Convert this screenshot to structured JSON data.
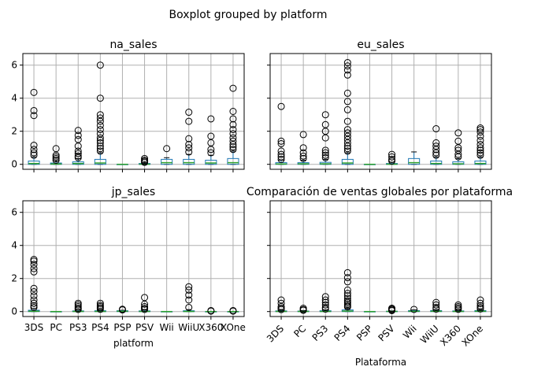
{
  "chart_data": {
    "type": "boxplot",
    "suptitle": "Boxplot grouped by platform",
    "categories": [
      "3DS",
      "PC",
      "PS3",
      "PS4",
      "PSP",
      "PSV",
      "Wii",
      "WiiU",
      "X360",
      "XOne"
    ],
    "ylim": [
      -0.3,
      6.7
    ],
    "yticks": [
      0,
      2,
      4,
      6
    ],
    "grid": true,
    "panels": [
      {
        "title": "na_sales",
        "xlabel": "",
        "show_xticklabels": false,
        "show_yticklabels": true,
        "boxes": [
          {
            "q1": 0.0,
            "med": 0.05,
            "q3": 0.2,
            "wlo": 0.0,
            "whi": 0.45,
            "fliers": [
              0.55,
              0.7,
              0.9,
              1.15,
              2.95,
              3.25,
              4.35
            ]
          },
          {
            "q1": 0.0,
            "med": 0.02,
            "q3": 0.08,
            "wlo": 0.0,
            "whi": 0.2,
            "fliers": [
              0.25,
              0.35,
              0.45,
              0.55,
              0.95
            ]
          },
          {
            "q1": 0.0,
            "med": 0.05,
            "q3": 0.15,
            "wlo": 0.0,
            "whi": 0.35,
            "fliers": [
              0.4,
              0.5,
              0.65,
              0.8,
              1.1,
              1.5,
              1.75,
              2.05
            ]
          },
          {
            "q1": 0.0,
            "med": 0.08,
            "q3": 0.3,
            "wlo": 0.0,
            "whi": 0.7,
            "fliers": [
              0.8,
              0.95,
              1.1,
              1.3,
              1.45,
              1.6,
              1.85,
              2.1,
              2.35,
              2.6,
              2.8,
              3.0,
              4.0,
              6.0
            ]
          },
          {
            "q1": 0.0,
            "med": 0.0,
            "q3": 0.0,
            "wlo": 0.0,
            "whi": 0.0,
            "fliers": []
          },
          {
            "q1": 0.0,
            "med": 0.01,
            "q3": 0.05,
            "wlo": 0.0,
            "whi": 0.1,
            "fliers": [
              0.12,
              0.18,
              0.25,
              0.35
            ]
          },
          {
            "q1": 0.0,
            "med": 0.1,
            "q3": 0.3,
            "wlo": 0.0,
            "whi": 0.4,
            "fliers": [
              0.95
            ]
          },
          {
            "q1": 0.0,
            "med": 0.1,
            "q3": 0.3,
            "wlo": 0.0,
            "whi": 0.6,
            "fliers": [
              0.75,
              1.0,
              1.2,
              1.55,
              2.6,
              3.15
            ]
          },
          {
            "q1": 0.0,
            "med": 0.08,
            "q3": 0.25,
            "wlo": 0.0,
            "whi": 0.55,
            "fliers": [
              0.7,
              0.9,
              1.3,
              1.7,
              2.75
            ]
          },
          {
            "q1": 0.0,
            "med": 0.1,
            "q3": 0.35,
            "wlo": 0.0,
            "whi": 0.8,
            "fliers": [
              0.9,
              1.05,
              1.2,
              1.4,
              1.6,
              1.85,
              2.1,
              2.4,
              2.75,
              3.2,
              4.6
            ]
          }
        ]
      },
      {
        "title": "eu_sales",
        "xlabel": "",
        "show_xticklabels": false,
        "show_yticklabels": false,
        "boxes": [
          {
            "q1": 0.0,
            "med": 0.02,
            "q3": 0.1,
            "wlo": 0.0,
            "whi": 0.25,
            "fliers": [
              0.3,
              0.45,
              0.6,
              0.8,
              1.25,
              1.4,
              3.5
            ]
          },
          {
            "q1": 0.0,
            "med": 0.03,
            "q3": 0.1,
            "wlo": 0.0,
            "whi": 0.25,
            "fliers": [
              0.35,
              0.5,
              0.7,
              1.0,
              1.8
            ]
          },
          {
            "q1": 0.0,
            "med": 0.03,
            "q3": 0.12,
            "wlo": 0.0,
            "whi": 0.3,
            "fliers": [
              0.4,
              0.55,
              0.7,
              0.85,
              1.6,
              2.0,
              2.4,
              3.0
            ]
          },
          {
            "q1": 0.0,
            "med": 0.08,
            "q3": 0.3,
            "wlo": 0.0,
            "whi": 0.7,
            "fliers": [
              0.8,
              0.95,
              1.1,
              1.3,
              1.5,
              1.7,
              1.9,
              2.1,
              2.6,
              3.3,
              3.8,
              4.3,
              5.4,
              5.7,
              5.95,
              6.15
            ]
          },
          {
            "q1": 0.0,
            "med": 0.0,
            "q3": 0.0,
            "wlo": 0.0,
            "whi": 0.0,
            "fliers": []
          },
          {
            "q1": 0.0,
            "med": 0.01,
            "q3": 0.05,
            "wlo": 0.0,
            "whi": 0.12,
            "fliers": [
              0.2,
              0.3,
              0.45,
              0.6
            ]
          },
          {
            "q1": 0.0,
            "med": 0.1,
            "q3": 0.35,
            "wlo": 0.0,
            "whi": 0.75,
            "fliers": []
          },
          {
            "q1": 0.0,
            "med": 0.05,
            "q3": 0.2,
            "wlo": 0.0,
            "whi": 0.45,
            "fliers": [
              0.55,
              0.7,
              0.9,
              1.1,
              1.3,
              2.15
            ]
          },
          {
            "q1": 0.0,
            "med": 0.03,
            "q3": 0.15,
            "wlo": 0.0,
            "whi": 0.35,
            "fliers": [
              0.45,
              0.6,
              0.85,
              1.0,
              1.4,
              1.9
            ]
          },
          {
            "q1": 0.0,
            "med": 0.05,
            "q3": 0.2,
            "wlo": 0.0,
            "whi": 0.45,
            "fliers": [
              0.55,
              0.7,
              0.85,
              1.0,
              1.2,
              1.45,
              1.7,
              1.95,
              2.1,
              2.2
            ]
          }
        ]
      },
      {
        "title": "jp_sales",
        "xlabel": "platform",
        "show_xticklabels": true,
        "xticklabel_rotation": 0,
        "show_yticklabels": true,
        "boxes": [
          {
            "q1": 0.0,
            "med": 0.02,
            "q3": 0.08,
            "wlo": 0.0,
            "whi": 0.18,
            "fliers": [
              0.25,
              0.35,
              0.5,
              0.7,
              0.95,
              1.2,
              1.4,
              2.4,
              2.6,
              2.85,
              3.05,
              3.15
            ]
          },
          {
            "q1": 0.0,
            "med": 0.0,
            "q3": 0.0,
            "wlo": 0.0,
            "whi": 0.0,
            "fliers": []
          },
          {
            "q1": 0.0,
            "med": 0.01,
            "q3": 0.04,
            "wlo": 0.0,
            "whi": 0.1,
            "fliers": [
              0.13,
              0.2,
              0.3,
              0.4,
              0.5
            ]
          },
          {
            "q1": 0.0,
            "med": 0.01,
            "q3": 0.05,
            "wlo": 0.0,
            "whi": 0.1,
            "fliers": [
              0.14,
              0.22,
              0.3,
              0.38,
              0.5
            ]
          },
          {
            "q1": 0.0,
            "med": 0.02,
            "q3": 0.05,
            "wlo": 0.0,
            "whi": 0.08,
            "fliers": [
              0.1,
              0.14
            ]
          },
          {
            "q1": 0.0,
            "med": 0.01,
            "q3": 0.04,
            "wlo": 0.0,
            "whi": 0.1,
            "fliers": [
              0.13,
              0.2,
              0.3,
              0.45,
              0.85
            ]
          },
          {
            "q1": 0.0,
            "med": 0.0,
            "q3": 0.0,
            "wlo": 0.0,
            "whi": 0.0,
            "fliers": []
          },
          {
            "q1": 0.0,
            "med": 0.01,
            "q3": 0.05,
            "wlo": 0.0,
            "whi": 0.12,
            "fliers": [
              0.25,
              0.7,
              1.0,
              1.3,
              1.5
            ]
          },
          {
            "q1": 0.0,
            "med": 0.0,
            "q3": 0.0,
            "wlo": 0.0,
            "whi": 0.0,
            "fliers": [
              0.03,
              0.06
            ]
          },
          {
            "q1": 0.0,
            "med": 0.0,
            "q3": 0.0,
            "wlo": 0.0,
            "whi": 0.0,
            "fliers": [
              0.03,
              0.06
            ]
          }
        ]
      },
      {
        "title": "Comparación de ventas globales por plataforma",
        "xlabel": "Plataforma",
        "show_xticklabels": true,
        "xticklabel_rotation": -45,
        "show_yticklabels": false,
        "boxes": [
          {
            "q1": 0.0,
            "med": 0.01,
            "q3": 0.04,
            "wlo": 0.0,
            "whi": 0.08,
            "fliers": [
              0.12,
              0.2,
              0.3,
              0.5,
              0.7
            ]
          },
          {
            "q1": 0.0,
            "med": 0.01,
            "q3": 0.03,
            "wlo": 0.0,
            "whi": 0.06,
            "fliers": [
              0.08,
              0.12,
              0.2
            ]
          },
          {
            "q1": 0.0,
            "med": 0.01,
            "q3": 0.05,
            "wlo": 0.0,
            "whi": 0.1,
            "fliers": [
              0.15,
              0.25,
              0.4,
              0.55,
              0.7,
              0.9
            ]
          },
          {
            "q1": 0.0,
            "med": 0.03,
            "q3": 0.1,
            "wlo": 0.0,
            "whi": 0.22,
            "fliers": [
              0.28,
              0.35,
              0.45,
              0.55,
              0.65,
              0.8,
              0.95,
              1.1,
              1.3,
              1.8,
              2.05,
              2.35
            ]
          },
          {
            "q1": 0.0,
            "med": 0.0,
            "q3": 0.0,
            "wlo": 0.0,
            "whi": 0.0,
            "fliers": []
          },
          {
            "q1": 0.0,
            "med": 0.01,
            "q3": 0.02,
            "wlo": 0.0,
            "whi": 0.04,
            "fliers": [
              0.06,
              0.1,
              0.15,
              0.2
            ]
          },
          {
            "q1": 0.0,
            "med": 0.02,
            "q3": 0.06,
            "wlo": 0.0,
            "whi": 0.1,
            "fliers": [
              0.13
            ]
          },
          {
            "q1": 0.0,
            "med": 0.02,
            "q3": 0.06,
            "wlo": 0.0,
            "whi": 0.12,
            "fliers": [
              0.15,
              0.25,
              0.4,
              0.55
            ]
          },
          {
            "q1": 0.0,
            "med": 0.01,
            "q3": 0.04,
            "wlo": 0.0,
            "whi": 0.1,
            "fliers": [
              0.14,
              0.22,
              0.3,
              0.4
            ]
          },
          {
            "q1": 0.0,
            "med": 0.02,
            "q3": 0.06,
            "wlo": 0.0,
            "whi": 0.12,
            "fliers": [
              0.16,
              0.25,
              0.35,
              0.5,
              0.7
            ]
          }
        ]
      }
    ]
  }
}
